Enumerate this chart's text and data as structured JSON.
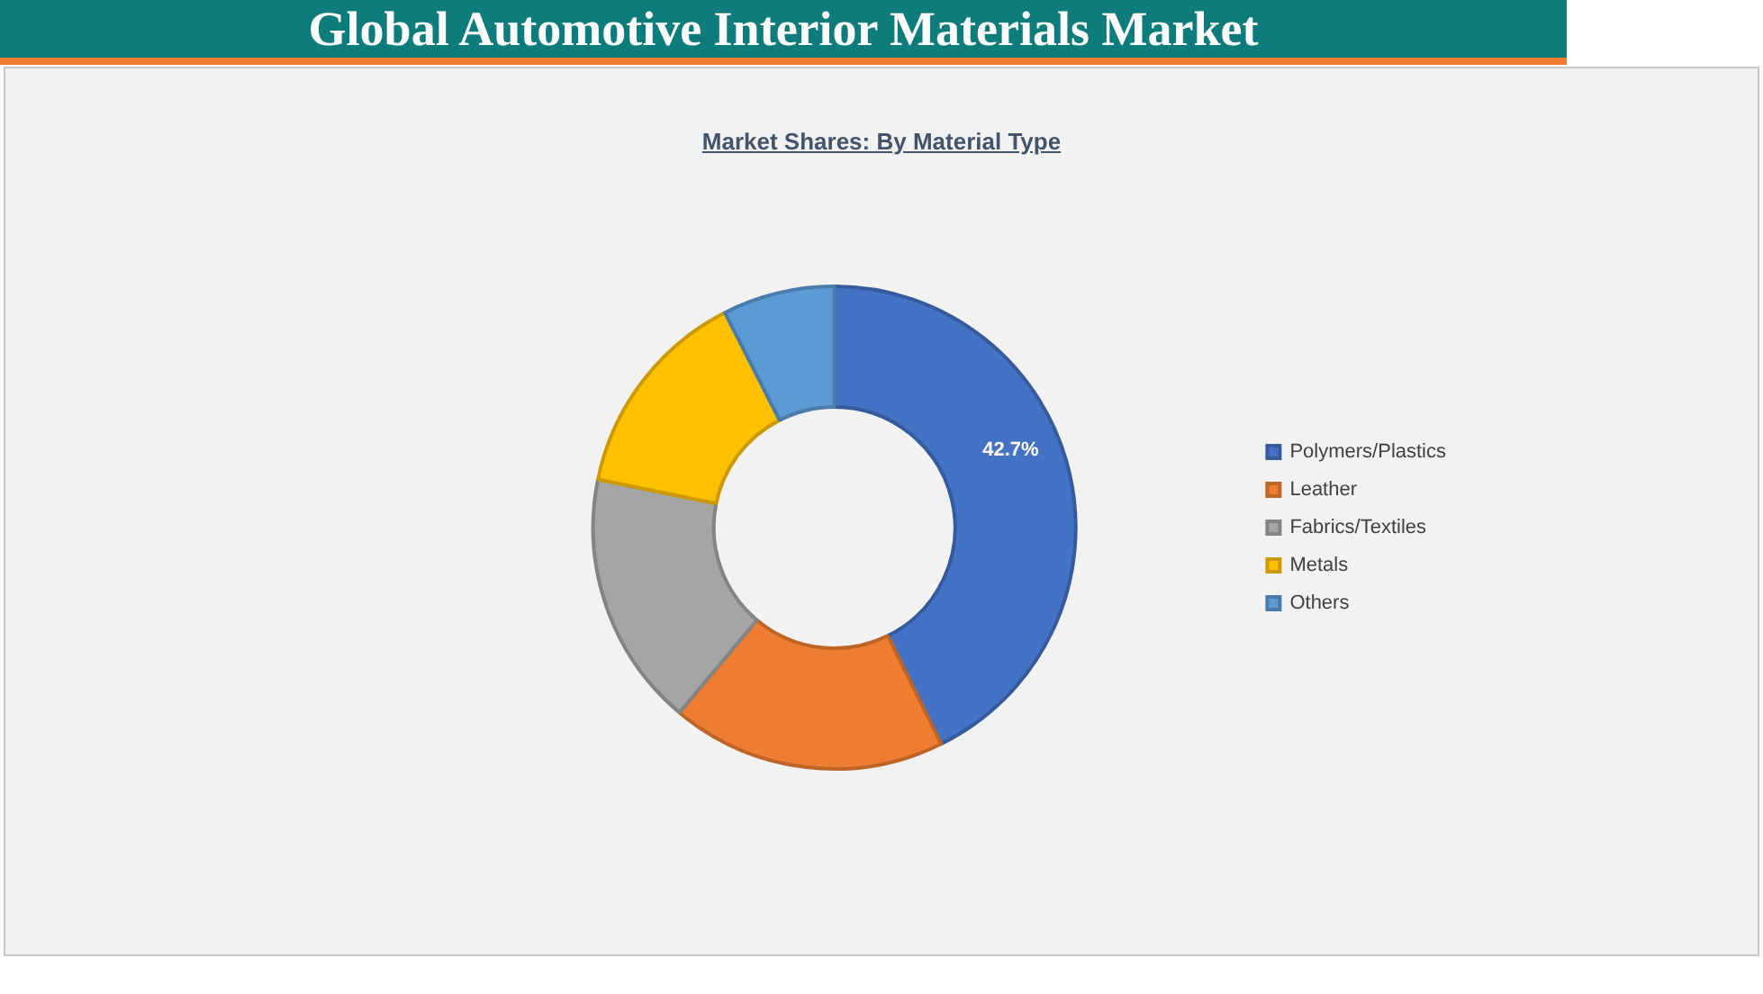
{
  "chart_data": {
    "type": "donut",
    "title": "Global Automotive Interior Materials Market",
    "subtitle": "Market Shares: By Material Type",
    "categories": [
      "Polymers/Plastics",
      "Leather",
      "Fabrics/Textiles",
      "Metals",
      "Others"
    ],
    "values": [
      42.7,
      18.4,
      17.1,
      14.3,
      7.5
    ],
    "colors": [
      "#4472c4",
      "#ed7d31",
      "#a5a5a5",
      "#ffc000",
      "#5b9bd5"
    ],
    "value_labels": [
      "42.7%",
      null,
      null,
      null,
      null
    ],
    "legend": "right"
  }
}
